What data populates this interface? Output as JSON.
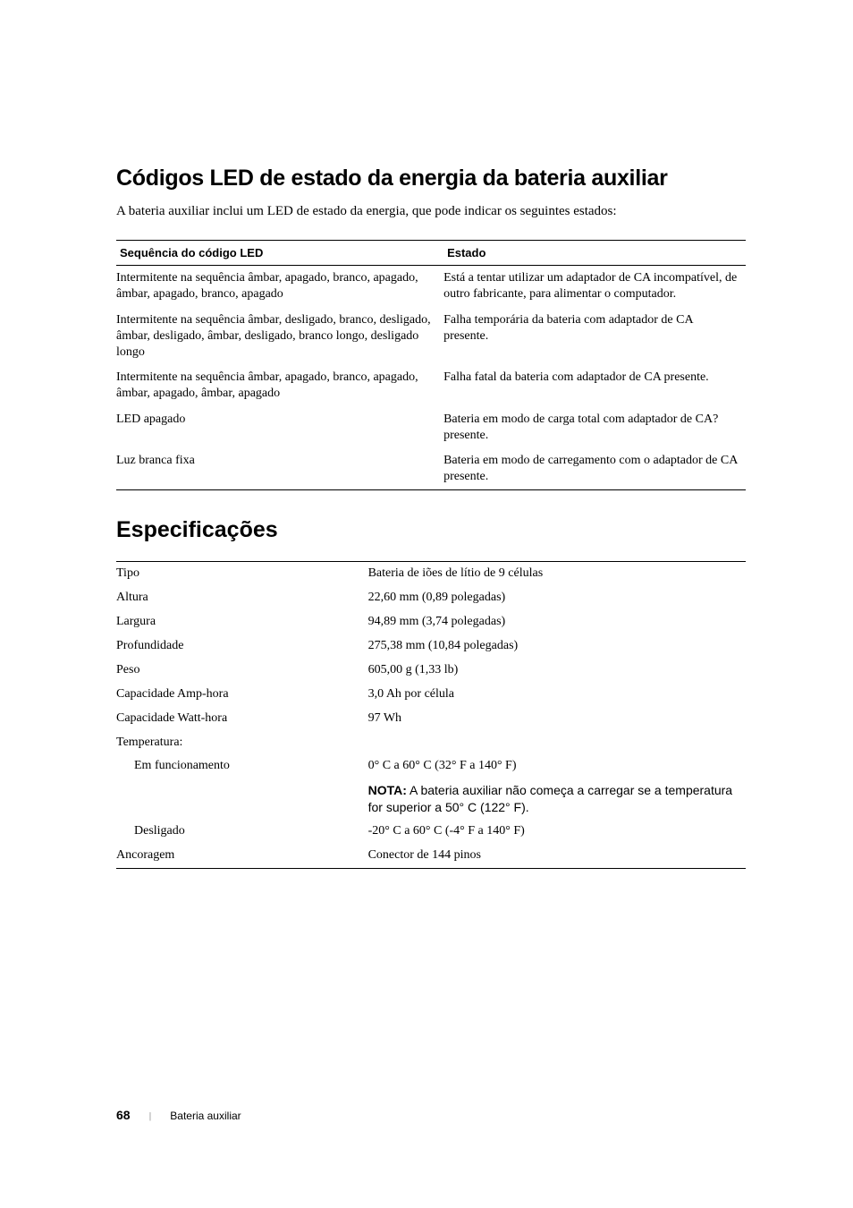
{
  "heading1": "Códigos LED de estado da energia da bateria auxiliar",
  "intro": "A bateria auxiliar inclui um LED de estado da energia, que pode indicar os seguintes estados:",
  "ledTable": {
    "header": {
      "col1": "Sequência do código LED",
      "col2": "Estado"
    },
    "rows": [
      {
        "seq": "Intermitente na sequência âmbar, apagado, branco, apagado, âmbar, apagado, branco, apagado",
        "state": "Está a tentar utilizar um adaptador de CA incompatível, de outro fabricante, para alimentar o computador."
      },
      {
        "seq": "Intermitente na sequência âmbar, desligado, branco, desligado, âmbar, desligado, âmbar, desligado, branco longo, desligado longo",
        "state": "Falha temporária da bateria com adaptador de CA presente."
      },
      {
        "seq": "Intermitente na sequência âmbar, apagado, branco, apagado, âmbar, apagado, âmbar, apagado",
        "state": "Falha fatal da bateria com adaptador de CA presente."
      },
      {
        "seq": "LED apagado",
        "state": "Bateria em modo de carga total com adaptador de CA?presente."
      },
      {
        "seq": "Luz branca fixa",
        "state": "Bateria em modo de carregamento com o adaptador de CA presente."
      }
    ]
  },
  "heading2": "Especificações",
  "specs": {
    "rows": [
      {
        "label": "Tipo",
        "value": "Bateria de iões de lítio de 9 células",
        "indent": false
      },
      {
        "label": "Altura",
        "value": "22,60 mm (0,89 polegadas)",
        "indent": false
      },
      {
        "label": "Largura",
        "value": "94,89 mm (3,74 polegadas)",
        "indent": false
      },
      {
        "label": "Profundidade",
        "value": "275,38 mm (10,84 polegadas)",
        "indent": false
      },
      {
        "label": "Peso",
        "value": "605,00 g (1,33 lb)",
        "indent": false
      },
      {
        "label": "Capacidade Amp-hora",
        "value": "3,0 Ah por célula",
        "indent": false
      },
      {
        "label": "Capacidade Watt-hora",
        "value": "97 Wh",
        "indent": false
      },
      {
        "label": "Temperatura:",
        "value": "",
        "indent": false
      },
      {
        "label": "Em funcionamento",
        "value": "0° C a 60° C (32° F a 140° F)",
        "indent": true
      }
    ],
    "note": {
      "bold": "NOTA:",
      "text": " A bateria auxiliar não começa a carregar se a temperatura for superior a 50° C (122° F)."
    },
    "rows2": [
      {
        "label": "Desligado",
        "value": "-20° C a 60° C (-4° F a 140° F)",
        "indent": true
      },
      {
        "label": "Ancoragem",
        "value": "Conector de 144 pinos",
        "indent": false
      }
    ]
  },
  "footer": {
    "page": "68",
    "title": "Bateria auxiliar"
  }
}
